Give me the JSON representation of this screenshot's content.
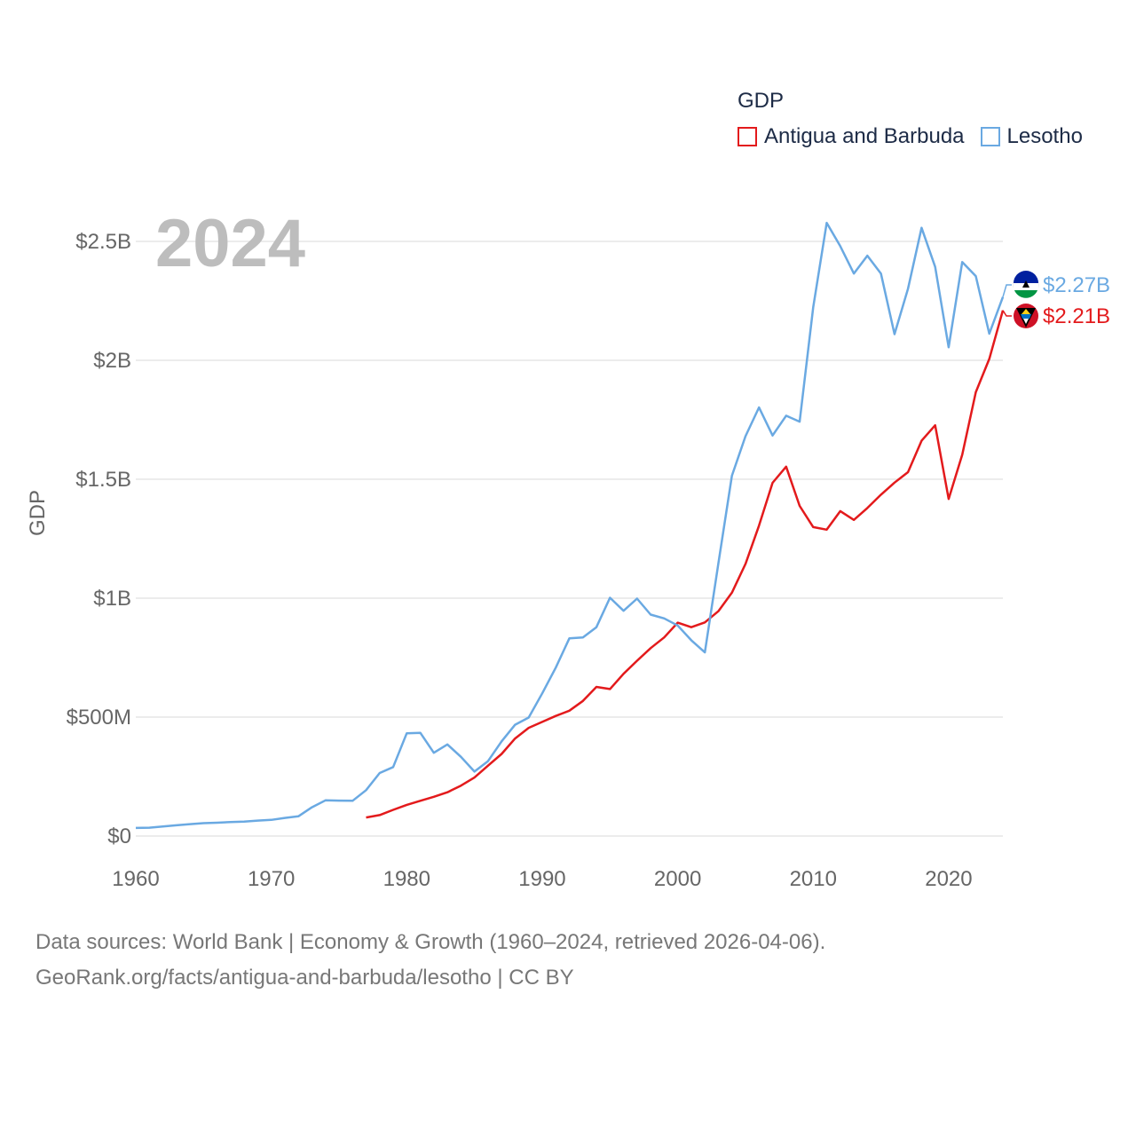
{
  "chart_data": {
    "type": "line",
    "title": "GDP",
    "year_label": "2024",
    "ylabel": "GDP",
    "xlabel": "",
    "xlim": [
      1960,
      2024
    ],
    "ylim": [
      0,
      2800000000
    ],
    "x_ticks": [
      1960,
      1970,
      1980,
      1990,
      2000,
      2010,
      2020
    ],
    "x_tick_labels": [
      "1960",
      "1970",
      "1980",
      "1990",
      "2000",
      "2010",
      "2020"
    ],
    "y_ticks": [
      0,
      500000000,
      1000000000,
      1500000000,
      2000000000,
      2500000000
    ],
    "y_tick_labels": [
      "$0",
      "$500M",
      "$1B",
      "$1.5B",
      "$2B",
      "$2.5B"
    ],
    "legend_position": "top-right",
    "series": [
      {
        "name": "Antigua and Barbuda",
        "color": "#e31a1c",
        "end_label": "$2.21B",
        "flag_icon": "antigua-and-barbuda-flag-icon",
        "x": [
          1977,
          1978,
          1979,
          1980,
          1981,
          1982,
          1983,
          1984,
          1985,
          1986,
          1987,
          1988,
          1989,
          1990,
          1991,
          1992,
          1993,
          1994,
          1995,
          1996,
          1997,
          1998,
          1999,
          2000,
          2001,
          2002,
          2003,
          2004,
          2005,
          2006,
          2007,
          2008,
          2009,
          2010,
          2011,
          2012,
          2013,
          2014,
          2015,
          2016,
          2017,
          2018,
          2019,
          2020,
          2021,
          2022,
          2023,
          2024
        ],
        "values": [
          78000000,
          88000000,
          110000000,
          131000000,
          148000000,
          165000000,
          184000000,
          212000000,
          246000000,
          296000000,
          345000000,
          410000000,
          455000000,
          480000000,
          505000000,
          527000000,
          568000000,
          627000000,
          618000000,
          682000000,
          737000000,
          790000000,
          835000000,
          897000000,
          878000000,
          898000000,
          945000000,
          1023000000,
          1144000000,
          1305000000,
          1485000000,
          1553000000,
          1388000000,
          1299000000,
          1288000000,
          1366000000,
          1329000000,
          1379000000,
          1435000000,
          1486000000,
          1530000000,
          1662000000,
          1727000000,
          1417000000,
          1603000000,
          1866000000,
          2006000000,
          2210000000
        ]
      },
      {
        "name": "Lesotho",
        "color": "#6aa9e2",
        "end_label": "$2.27B",
        "flag_icon": "lesotho-flag-icon",
        "x": [
          1960,
          1961,
          1962,
          1963,
          1964,
          1965,
          1966,
          1967,
          1968,
          1969,
          1970,
          1971,
          1972,
          1973,
          1974,
          1975,
          1976,
          1977,
          1978,
          1979,
          1980,
          1981,
          1982,
          1983,
          1984,
          1985,
          1986,
          1987,
          1988,
          1989,
          1990,
          1991,
          1992,
          1993,
          1994,
          1995,
          1996,
          1997,
          1998,
          1999,
          2000,
          2001,
          2002,
          2003,
          2004,
          2005,
          2006,
          2007,
          2008,
          2009,
          2010,
          2011,
          2012,
          2013,
          2014,
          2015,
          2016,
          2017,
          2018,
          2019,
          2020,
          2021,
          2022,
          2023,
          2024
        ],
        "values": [
          34000000,
          35000000,
          40000000,
          45000000,
          50000000,
          54000000,
          56000000,
          59000000,
          61000000,
          65000000,
          68000000,
          76000000,
          83000000,
          121000000,
          150000000,
          149000000,
          148000000,
          193000000,
          265000000,
          290000000,
          432000000,
          434000000,
          350000000,
          385000000,
          333000000,
          271000000,
          315000000,
          398000000,
          468000000,
          498000000,
          600000000,
          708000000,
          831000000,
          835000000,
          878000000,
          1002000000,
          947000000,
          998000000,
          931000000,
          915000000,
          885000000,
          823000000,
          772000000,
          1145000000,
          1515000000,
          1681000000,
          1802000000,
          1684000000,
          1767000000,
          1742000000,
          2223000000,
          2578000000,
          2480000000,
          2365000000,
          2440000000,
          2365000000,
          2110000000,
          2301000000,
          2557000000,
          2393000000,
          2055000000,
          2413000000,
          2354000000,
          2112000000,
          2266000000
        ]
      }
    ]
  },
  "legend": {
    "title": "GDP",
    "items": [
      {
        "label": "Antigua and Barbuda",
        "color": "#e31a1c"
      },
      {
        "label": "Lesotho",
        "color": "#6aa9e2"
      }
    ]
  },
  "footer": {
    "line1": "Data sources: World Bank | Economy & Growth (1960–2024, retrieved 2026-04-06).",
    "line2": "GeoRank.org/facts/antigua-and-barbuda/lesotho | CC BY"
  }
}
